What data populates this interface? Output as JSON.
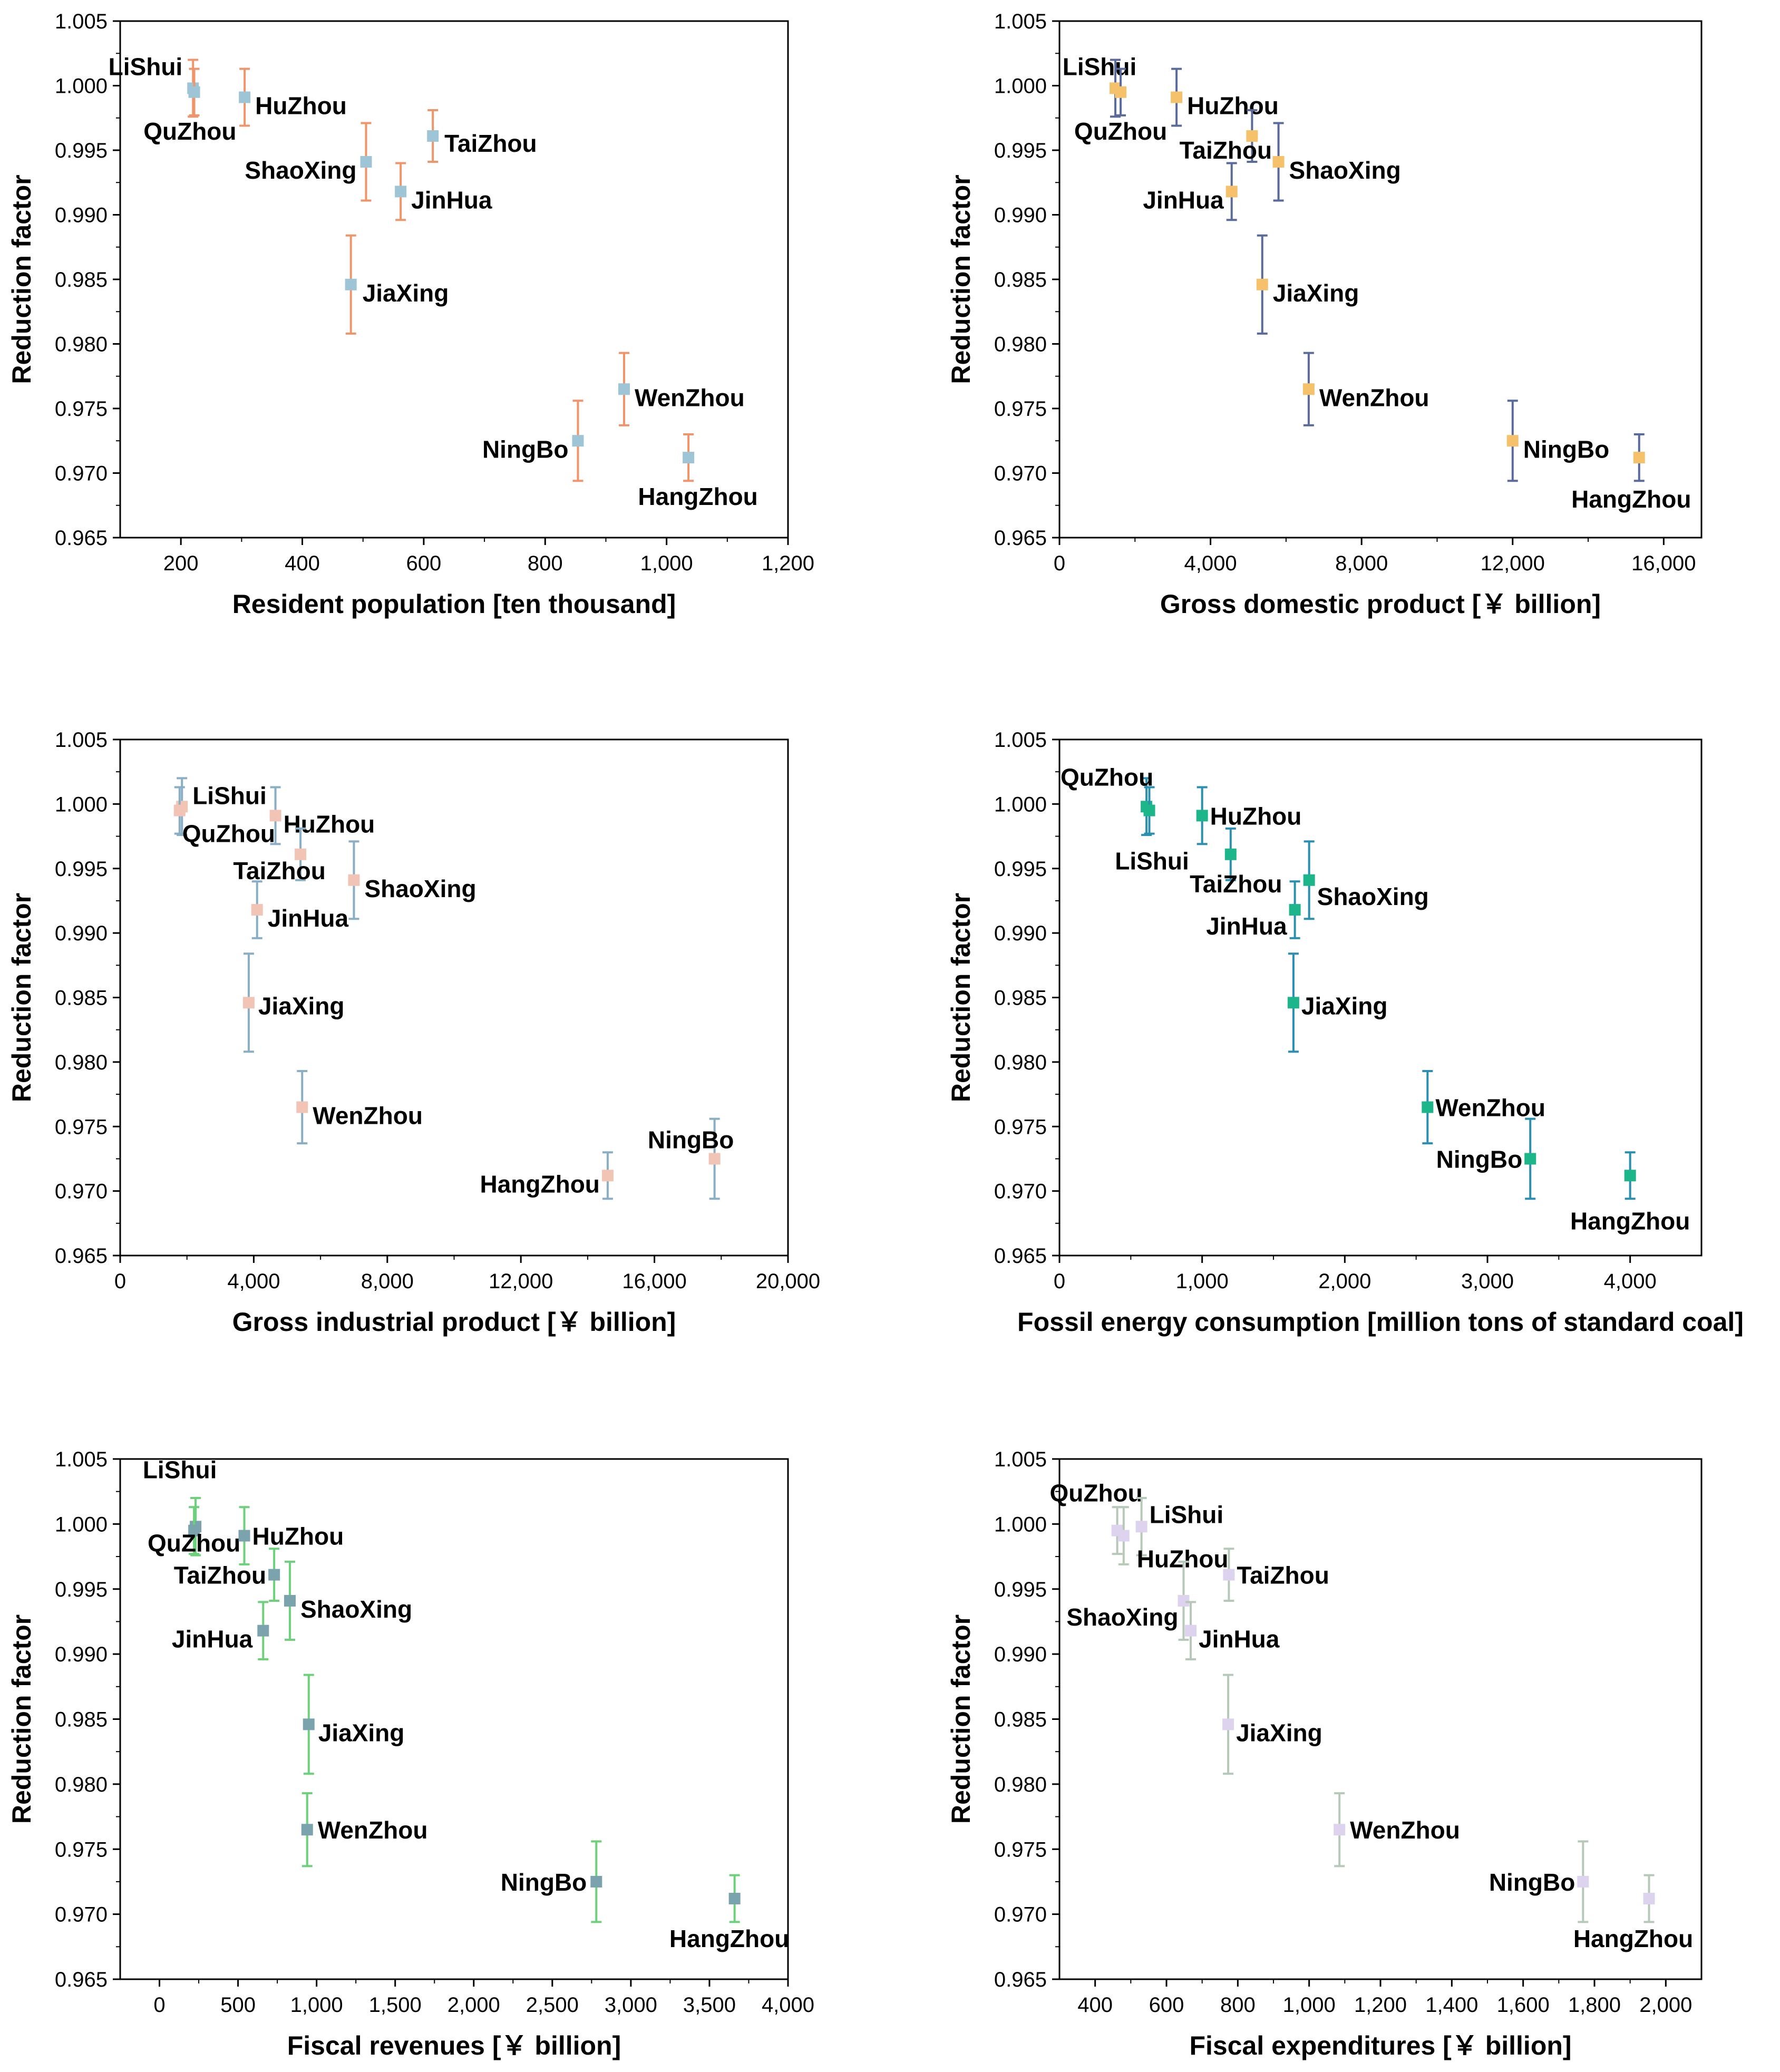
{
  "chart_data": [
    {
      "type": "scatter",
      "xlabel": "Resident population [ten thousand]",
      "ylabel": "Reduction factor",
      "xlim": [
        100,
        1200
      ],
      "ylim": [
        0.965,
        1.005
      ],
      "xticks": [
        200,
        400,
        600,
        800,
        1000,
        1200
      ],
      "xtick_labels": [
        "200",
        "400",
        "600",
        "800",
        "1,000",
        "1,200"
      ],
      "yticks": [
        0.965,
        0.97,
        0.975,
        0.98,
        0.985,
        0.99,
        0.995,
        1.0,
        1.005
      ],
      "ytick_labels": [
        "0.965",
        "0.970",
        "0.975",
        "0.980",
        "0.985",
        "0.990",
        "0.995",
        "1.000",
        "1.005"
      ],
      "marker_color": "#9ec5d6",
      "errorbar_color": "#f0956a",
      "points": [
        {
          "label": "LiShui",
          "x": 220,
          "y": 0.9998,
          "err": 0.0022
        },
        {
          "label": "QuZhou",
          "x": 222,
          "y": 0.9995,
          "err": 0.0018
        },
        {
          "label": "HuZhou",
          "x": 305,
          "y": 0.9991,
          "err": 0.0022
        },
        {
          "label": "TaiZhou",
          "x": 615,
          "y": 0.9961,
          "err": 0.002
        },
        {
          "label": "ShaoXing",
          "x": 505,
          "y": 0.9941,
          "err": 0.003
        },
        {
          "label": "JinHua",
          "x": 562,
          "y": 0.9918,
          "err": 0.0022
        },
        {
          "label": "JiaXing",
          "x": 480,
          "y": 0.9846,
          "err": 0.0038
        },
        {
          "label": "WenZhou",
          "x": 930,
          "y": 0.9765,
          "err": 0.0028
        },
        {
          "label": "NingBo",
          "x": 854,
          "y": 0.9725,
          "err": 0.0031
        },
        {
          "label": "HangZhou",
          "x": 1036,
          "y": 0.9712,
          "err": 0.0018
        }
      ]
    },
    {
      "type": "scatter",
      "xlabel": "Gross domestic product [￥ billion]",
      "ylabel": "Reduction factor",
      "xlim": [
        0,
        17000
      ],
      "ylim": [
        0.965,
        1.005
      ],
      "xticks": [
        0,
        4000,
        8000,
        12000,
        16000
      ],
      "xtick_labels": [
        "0",
        "4,000",
        "8,000",
        "12,000",
        "16,000"
      ],
      "yticks": [
        0.965,
        0.97,
        0.975,
        0.98,
        0.985,
        0.99,
        0.995,
        1.0,
        1.005
      ],
      "ytick_labels": [
        "0.965",
        "0.970",
        "0.975",
        "0.980",
        "0.985",
        "0.990",
        "0.995",
        "1.000",
        "1.005"
      ],
      "marker_color": "#f5c26b",
      "errorbar_color": "#5a6b9b",
      "points": [
        {
          "label": "LiShui",
          "x": 1480,
          "y": 0.9998,
          "err": 0.0022
        },
        {
          "label": "QuZhou",
          "x": 1620,
          "y": 0.9995,
          "err": 0.0018
        },
        {
          "label": "HuZhou",
          "x": 3100,
          "y": 0.9991,
          "err": 0.0022
        },
        {
          "label": "TaiZhou",
          "x": 5100,
          "y": 0.9961,
          "err": 0.002
        },
        {
          "label": "ShaoXing",
          "x": 5800,
          "y": 0.9941,
          "err": 0.003
        },
        {
          "label": "JinHua",
          "x": 4560,
          "y": 0.9918,
          "err": 0.0022
        },
        {
          "label": "JiaXing",
          "x": 5370,
          "y": 0.9846,
          "err": 0.0038
        },
        {
          "label": "WenZhou",
          "x": 6600,
          "y": 0.9765,
          "err": 0.0028
        },
        {
          "label": "NingBo",
          "x": 12000,
          "y": 0.9725,
          "err": 0.0031
        },
        {
          "label": "HangZhou",
          "x": 15350,
          "y": 0.9712,
          "err": 0.0018
        }
      ]
    },
    {
      "type": "scatter",
      "xlabel": "Gross industrial product [￥ billion]",
      "ylabel": "Reduction factor",
      "xlim": [
        0,
        20000
      ],
      "ylim": [
        0.965,
        1.005
      ],
      "xticks": [
        0,
        4000,
        8000,
        12000,
        16000,
        20000
      ],
      "xtick_labels": [
        "0",
        "4,000",
        "8,000",
        "12,000",
        "16,000",
        "20,000"
      ],
      "yticks": [
        0.965,
        0.97,
        0.975,
        0.98,
        0.985,
        0.99,
        0.995,
        1.0,
        1.005
      ],
      "ytick_labels": [
        "0.965",
        "0.970",
        "0.975",
        "0.980",
        "0.985",
        "0.990",
        "0.995",
        "1.000",
        "1.005"
      ],
      "marker_color": "#f2c4b6",
      "errorbar_color": "#8aaec4",
      "points": [
        {
          "label": "LiShui",
          "x": 1850,
          "y": 0.9998,
          "err": 0.0022
        },
        {
          "label": "QuZhou",
          "x": 1780,
          "y": 0.9995,
          "err": 0.0018
        },
        {
          "label": "HuZhou",
          "x": 4650,
          "y": 0.9991,
          "err": 0.0022
        },
        {
          "label": "TaiZhou",
          "x": 5400,
          "y": 0.9961,
          "err": 0.002
        },
        {
          "label": "ShaoXing",
          "x": 7000,
          "y": 0.9941,
          "err": 0.003
        },
        {
          "label": "JinHua",
          "x": 4100,
          "y": 0.9918,
          "err": 0.0022
        },
        {
          "label": "JiaXing",
          "x": 3850,
          "y": 0.9846,
          "err": 0.0038
        },
        {
          "label": "WenZhou",
          "x": 5450,
          "y": 0.9765,
          "err": 0.0028
        },
        {
          "label": "NingBo",
          "x": 17800,
          "y": 0.9725,
          "err": 0.0031
        },
        {
          "label": "HangZhou",
          "x": 14600,
          "y": 0.9712,
          "err": 0.0018
        }
      ]
    },
    {
      "type": "scatter",
      "xlabel": "Fossil energy consumption [million tons of standard coal]",
      "ylabel": "Reduction factor",
      "xlim": [
        0,
        4500
      ],
      "ylim": [
        0.965,
        1.005
      ],
      "xticks": [
        0,
        1000,
        2000,
        3000,
        4000
      ],
      "xtick_labels": [
        "0",
        "1,000",
        "2,000",
        "3,000",
        "4,000"
      ],
      "yticks": [
        0.965,
        0.97,
        0.975,
        0.98,
        0.985,
        0.99,
        0.995,
        1.0,
        1.005
      ],
      "ytick_labels": [
        "0.965",
        "0.970",
        "0.975",
        "0.980",
        "0.985",
        "0.990",
        "0.995",
        "1.000",
        "1.005"
      ],
      "marker_color": "#1db68a",
      "errorbar_color": "#2a8fb0",
      "points": [
        {
          "label": "QuZhou",
          "x": 610,
          "y": 0.9998,
          "err": 0.0022
        },
        {
          "label": "LiShui",
          "x": 630,
          "y": 0.9995,
          "err": 0.0018
        },
        {
          "label": "HuZhou",
          "x": 1000,
          "y": 0.9991,
          "err": 0.0022
        },
        {
          "label": "TaiZhou",
          "x": 1200,
          "y": 0.9961,
          "err": 0.002
        },
        {
          "label": "ShaoXing",
          "x": 1750,
          "y": 0.9941,
          "err": 0.003
        },
        {
          "label": "JinHua",
          "x": 1650,
          "y": 0.9918,
          "err": 0.0022
        },
        {
          "label": "JiaXing",
          "x": 1640,
          "y": 0.9846,
          "err": 0.0038
        },
        {
          "label": "WenZhou",
          "x": 2580,
          "y": 0.9765,
          "err": 0.0028
        },
        {
          "label": "NingBo",
          "x": 3300,
          "y": 0.9725,
          "err": 0.0031
        },
        {
          "label": "HangZhou",
          "x": 4000,
          "y": 0.9712,
          "err": 0.0018
        }
      ]
    },
    {
      "type": "scatter",
      "xlabel": "Fiscal revenues [￥ billion]",
      "ylabel": "Reduction factor",
      "xlim": [
        -250,
        4000
      ],
      "ylim": [
        0.965,
        1.005
      ],
      "xticks": [
        0,
        500,
        1000,
        1500,
        2000,
        2500,
        3000,
        3500,
        4000
      ],
      "xtick_labels": [
        "0",
        "500",
        "1,000",
        "1,500",
        "2,000",
        "2,500",
        "3,000",
        "3,500",
        "4,000"
      ],
      "yticks": [
        0.965,
        0.97,
        0.975,
        0.98,
        0.985,
        0.99,
        0.995,
        1.0,
        1.005
      ],
      "ytick_labels": [
        "0.965",
        "0.970",
        "0.975",
        "0.980",
        "0.985",
        "0.990",
        "0.995",
        "1.000",
        "1.005"
      ],
      "marker_color": "#7aa3ae",
      "errorbar_color": "#6dd07a",
      "points": [
        {
          "label": "LiShui",
          "x": 230,
          "y": 0.9998,
          "err": 0.0022
        },
        {
          "label": "QuZhou",
          "x": 220,
          "y": 0.9995,
          "err": 0.0018
        },
        {
          "label": "HuZhou",
          "x": 540,
          "y": 0.9991,
          "err": 0.0022
        },
        {
          "label": "TaiZhou",
          "x": 730,
          "y": 0.9961,
          "err": 0.002
        },
        {
          "label": "ShaoXing",
          "x": 830,
          "y": 0.9941,
          "err": 0.003
        },
        {
          "label": "JinHua",
          "x": 660,
          "y": 0.9918,
          "err": 0.0022
        },
        {
          "label": "JiaXing",
          "x": 950,
          "y": 0.9846,
          "err": 0.0038
        },
        {
          "label": "WenZhou",
          "x": 940,
          "y": 0.9765,
          "err": 0.0028
        },
        {
          "label": "NingBo",
          "x": 2780,
          "y": 0.9725,
          "err": 0.0031
        },
        {
          "label": "HangZhou",
          "x": 3660,
          "y": 0.9712,
          "err": 0.0018
        }
      ]
    },
    {
      "type": "scatter",
      "xlabel": "Fiscal expenditures [￥ billion]",
      "ylabel": "Reduction factor",
      "xlim": [
        300,
        2100
      ],
      "ylim": [
        0.965,
        1.005
      ],
      "xticks": [
        400,
        600,
        800,
        1000,
        1200,
        1400,
        1600,
        1800,
        2000
      ],
      "xtick_labels": [
        "400",
        "600",
        "800",
        "1,000",
        "1,200",
        "1,400",
        "1,600",
        "1,800",
        "2,000"
      ],
      "yticks": [
        0.965,
        0.97,
        0.975,
        0.98,
        0.985,
        0.99,
        0.995,
        1.0,
        1.005
      ],
      "ytick_labels": [
        "0.965",
        "0.970",
        "0.975",
        "0.980",
        "0.985",
        "0.990",
        "0.995",
        "1.000",
        "1.005"
      ],
      "marker_color": "#ddd3ee",
      "errorbar_color": "#b6c9b8",
      "points": [
        {
          "label": "QuZhou",
          "x": 462,
          "y": 0.9995,
          "err": 0.0018
        },
        {
          "label": "LiShui",
          "x": 530,
          "y": 0.9998,
          "err": 0.0022
        },
        {
          "label": "HuZhou",
          "x": 480,
          "y": 0.9991,
          "err": 0.0022
        },
        {
          "label": "TaiZhou",
          "x": 775,
          "y": 0.9961,
          "err": 0.002
        },
        {
          "label": "ShaoXing",
          "x": 648,
          "y": 0.9941,
          "err": 0.003
        },
        {
          "label": "JinHua",
          "x": 668,
          "y": 0.9918,
          "err": 0.0022
        },
        {
          "label": "JiaXing",
          "x": 773,
          "y": 0.9846,
          "err": 0.0038
        },
        {
          "label": "WenZhou",
          "x": 1085,
          "y": 0.9765,
          "err": 0.0028
        },
        {
          "label": "NingBo",
          "x": 1768,
          "y": 0.9725,
          "err": 0.0031
        },
        {
          "label": "HangZhou",
          "x": 1953,
          "y": 0.9712,
          "err": 0.0018
        }
      ]
    }
  ]
}
